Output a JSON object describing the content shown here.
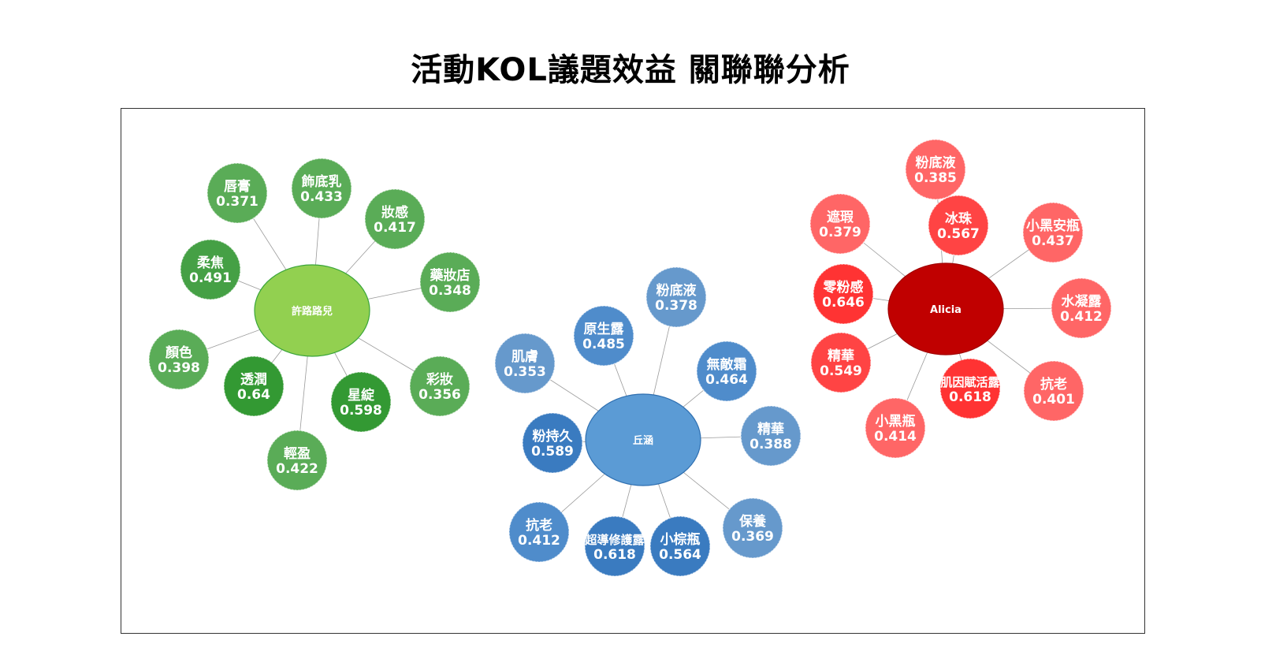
{
  "title": "活動KOL議題效益 關聯聯分析",
  "colors": {
    "green_hub": "#92d050",
    "green_light": "#5aac57",
    "green_dark": "#339933",
    "blue_hub": "#5b9bd5",
    "blue_light": "#6699cc",
    "blue_dark": "#3a7bc0",
    "red_hub": "#c00000",
    "red_light": "#ff6666",
    "red_dark": "#ff3333"
  },
  "clusters": [
    {
      "hub": "許路路兒",
      "color_group": "green",
      "nodes": [
        {
          "label": "唇膏",
          "value": "0.371"
        },
        {
          "label": "飾底乳",
          "value": "0.433"
        },
        {
          "label": "妝感",
          "value": "0.417"
        },
        {
          "label": "藥妝店",
          "value": "0.348"
        },
        {
          "label": "柔焦",
          "value": "0.491"
        },
        {
          "label": "顏色",
          "value": "0.398"
        },
        {
          "label": "透潤",
          "value": "0.64"
        },
        {
          "label": "星綻",
          "value": "0.598"
        },
        {
          "label": "彩妝",
          "value": "0.356"
        },
        {
          "label": "輕盈",
          "value": "0.422"
        }
      ]
    },
    {
      "hub": "丘涵",
      "color_group": "blue",
      "nodes": [
        {
          "label": "粉底液",
          "value": "0.378"
        },
        {
          "label": "原生露",
          "value": "0.485"
        },
        {
          "label": "肌膚",
          "value": "0.353"
        },
        {
          "label": "無敵霜",
          "value": "0.464"
        },
        {
          "label": "精華",
          "value": "0.388"
        },
        {
          "label": "粉持久",
          "value": "0.589"
        },
        {
          "label": "抗老",
          "value": "0.412"
        },
        {
          "label": "超導修護露",
          "value": "0.618"
        },
        {
          "label": "小棕瓶",
          "value": "0.564"
        },
        {
          "label": "保養",
          "value": "0.369"
        }
      ]
    },
    {
      "hub": "Alicia",
      "color_group": "red",
      "nodes": [
        {
          "label": "粉底液",
          "value": "0.385"
        },
        {
          "label": "遮瑕",
          "value": "0.379"
        },
        {
          "label": "冰珠",
          "value": "0.567"
        },
        {
          "label": "小黑安瓶",
          "value": "0.437"
        },
        {
          "label": "零粉感",
          "value": "0.646"
        },
        {
          "label": "水凝露",
          "value": "0.412"
        },
        {
          "label": "精華",
          "value": "0.549"
        },
        {
          "label": "肌因賦活露",
          "value": "0.618"
        },
        {
          "label": "抗老",
          "value": "0.401"
        },
        {
          "label": "小黑瓶",
          "value": "0.414"
        }
      ]
    }
  ]
}
